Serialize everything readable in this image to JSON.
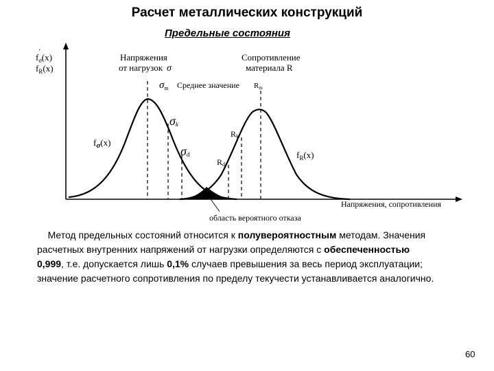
{
  "slide": {
    "title": "Расчет металлических конструкций",
    "subtitle": "Предельные состояния",
    "bullet": ".",
    "page_number": "60"
  },
  "diagram": {
    "y_axis_label_1": "f",
    "y_axis_label_1_sub": "σ",
    "y_axis_label_1_arg": "(x)",
    "y_axis_label_2": "f",
    "y_axis_label_2_sub": "R",
    "y_axis_label_2_arg": "(x)",
    "load_title_line1": "Напряжения",
    "load_title_line2": "от нагрузок",
    "load_title_symbol": "σ",
    "resist_title_line1": "Сопротивление",
    "resist_title_line2": "материала R",
    "mean_label": "Среднее значение",
    "sigma_m": "σ",
    "sigma_m_sub": "m",
    "r_m": "R",
    "r_m_sub": "m",
    "sigma_k": "σ",
    "sigma_k_sub": "k",
    "sigma_d": "σ",
    "sigma_d_sub": "d",
    "r_k": "R",
    "r_k_sub": "k",
    "r_d": "R",
    "r_d_sub": "d",
    "f_sigma": "f",
    "f_sigma_sub": "σ",
    "f_sigma_arg": "(x)",
    "f_r": "f",
    "f_r_sub": "R",
    "f_r_arg": "(x)",
    "x_axis_label": "Напряжения, сопротивления",
    "failure_label": "область вероятного отказа"
  },
  "paragraph": {
    "p1": "Метод предельных состояний относится к ",
    "p1_bold": "полувероятностным",
    "p2": " методам. Значения расчетных внутренних напряжений от нагрузки определяются с ",
    "p2_bold": "обеспеченностью 0,999",
    "p3": ", т.е. допускается лишь ",
    "p3_bold": "0,1%",
    "p4": " случаев превышения за весь период эксплуатации; значение расчетного сопротивления по пределу текучести устанавливается аналогично."
  }
}
